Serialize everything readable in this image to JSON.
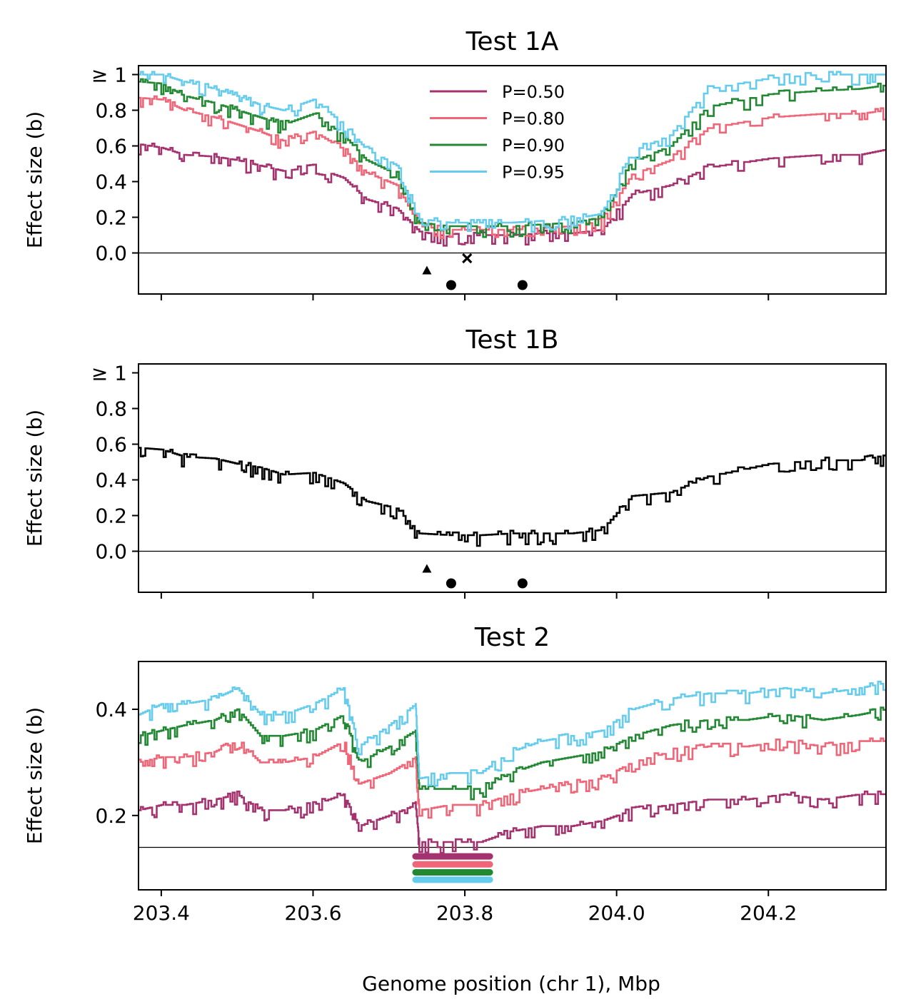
{
  "figure": {
    "xlabel": "Genome position (chr 1), Mbp",
    "x_ticks": [
      "203.4",
      "203.6",
      "203.8",
      "204.0",
      "204.2"
    ],
    "x_tick_values": [
      203.4,
      203.6,
      203.8,
      204.0,
      204.2
    ],
    "xlim": [
      203.37,
      204.355
    ]
  },
  "colors": {
    "P=0.50": "#a3326f",
    "P=0.80": "#ee6677",
    "P=0.90": "#228833",
    "P=0.95": "#66ccee",
    "single": "#000000"
  },
  "chart_data": [
    {
      "type": "line",
      "title": "Test 1A",
      "ylabel": "Effect size (b)",
      "ylim": [
        -0.23,
        1.05
      ],
      "y_ticks": [
        "0.0",
        "0.2",
        "0.4",
        "0.6",
        "0.8",
        "≥ 1"
      ],
      "y_tick_values": [
        0,
        0.2,
        0.4,
        0.6,
        0.8,
        1.0
      ],
      "hline": 0,
      "legend": {
        "placement": "top-center",
        "entries": [
          "P=0.50",
          "P=0.80",
          "P=0.90",
          "P=0.95"
        ]
      },
      "x": [
        203.37,
        203.4,
        203.43,
        203.47,
        203.5,
        203.53,
        203.56,
        203.6,
        203.64,
        203.67,
        203.71,
        203.74,
        203.78,
        203.82,
        203.86,
        203.9,
        203.94,
        203.98,
        204.02,
        204.07,
        204.12,
        204.2,
        204.27,
        204.32,
        204.355
      ],
      "series": [
        {
          "name": "P=0.50",
          "values": [
            0.61,
            0.59,
            0.55,
            0.54,
            0.52,
            0.49,
            0.46,
            0.48,
            0.42,
            0.3,
            0.25,
            0.12,
            0.09,
            0.1,
            0.1,
            0.11,
            0.11,
            0.13,
            0.33,
            0.38,
            0.48,
            0.53,
            0.55,
            0.55,
            0.58
          ]
        },
        {
          "name": "P=0.80",
          "values": [
            0.87,
            0.86,
            0.8,
            0.76,
            0.72,
            0.68,
            0.63,
            0.68,
            0.58,
            0.45,
            0.38,
            0.15,
            0.13,
            0.13,
            0.13,
            0.14,
            0.15,
            0.18,
            0.44,
            0.52,
            0.7,
            0.76,
            0.78,
            0.78,
            0.8
          ]
        },
        {
          "name": "P=0.90",
          "values": [
            0.96,
            0.95,
            0.88,
            0.84,
            0.8,
            0.76,
            0.72,
            0.78,
            0.66,
            0.52,
            0.44,
            0.17,
            0.15,
            0.15,
            0.15,
            0.16,
            0.17,
            0.2,
            0.51,
            0.6,
            0.82,
            0.89,
            0.91,
            0.92,
            0.94
          ]
        },
        {
          "name": "P=0.95",
          "values": [
            1.0,
            1.0,
            0.96,
            0.92,
            0.88,
            0.83,
            0.8,
            0.86,
            0.72,
            0.58,
            0.49,
            0.19,
            0.17,
            0.17,
            0.17,
            0.18,
            0.19,
            0.22,
            0.57,
            0.66,
            0.92,
            0.98,
            1.0,
            1.0,
            1.0
          ]
        }
      ],
      "markers": [
        {
          "shape": "triangle",
          "x": 203.75,
          "y": -0.1
        },
        {
          "shape": "cross",
          "x": 203.803,
          "y": -0.03
        },
        {
          "shape": "circle",
          "x": 203.782,
          "y": -0.18
        },
        {
          "shape": "circle",
          "x": 203.876,
          "y": -0.18
        }
      ]
    },
    {
      "type": "line",
      "title": "Test 1B",
      "ylabel": "Effect size (b)",
      "ylim": [
        -0.23,
        1.05
      ],
      "y_ticks": [
        "0.0",
        "0.2",
        "0.4",
        "0.6",
        "0.8",
        "≥ 1"
      ],
      "y_tick_values": [
        0,
        0.2,
        0.4,
        0.6,
        0.8,
        1.0
      ],
      "hline": 0,
      "x": [
        203.37,
        203.4,
        203.43,
        203.47,
        203.5,
        203.53,
        203.56,
        203.6,
        203.64,
        203.67,
        203.71,
        203.74,
        203.78,
        203.82,
        203.86,
        203.9,
        203.94,
        203.98,
        204.02,
        204.07,
        204.12,
        204.2,
        204.27,
        204.32,
        204.355
      ],
      "series": [
        {
          "values": [
            0.58,
            0.57,
            0.53,
            0.52,
            0.49,
            0.47,
            0.43,
            0.44,
            0.38,
            0.28,
            0.24,
            0.1,
            0.09,
            0.09,
            0.1,
            0.1,
            0.1,
            0.12,
            0.31,
            0.33,
            0.42,
            0.49,
            0.51,
            0.51,
            0.54
          ]
        }
      ],
      "markers": [
        {
          "shape": "triangle",
          "x": 203.75,
          "y": -0.1
        },
        {
          "shape": "circle",
          "x": 203.782,
          "y": -0.18
        },
        {
          "shape": "circle",
          "x": 203.876,
          "y": -0.18
        }
      ]
    },
    {
      "type": "line",
      "title": "Test 2",
      "ylabel": "Effect size (b)",
      "ylim": [
        0.06,
        0.49
      ],
      "y_ticks": [
        "0.2",
        "0.4"
      ],
      "y_tick_values": [
        0.2,
        0.4
      ],
      "hline": 0.14,
      "x": [
        203.37,
        203.4,
        203.43,
        203.47,
        203.5,
        203.53,
        203.56,
        203.6,
        203.64,
        203.66,
        203.7,
        203.735,
        203.74,
        203.78,
        203.82,
        203.86,
        203.9,
        203.94,
        203.98,
        204.02,
        204.07,
        204.12,
        204.17,
        204.22,
        204.27,
        204.32,
        204.355
      ],
      "series": [
        {
          "name": "P=0.50",
          "values": [
            0.21,
            0.22,
            0.22,
            0.23,
            0.24,
            0.21,
            0.21,
            0.22,
            0.24,
            0.18,
            0.2,
            0.22,
            0.15,
            0.15,
            0.15,
            0.17,
            0.18,
            0.18,
            0.19,
            0.21,
            0.22,
            0.23,
            0.23,
            0.24,
            0.23,
            0.24,
            0.24
          ]
        },
        {
          "name": "P=0.80",
          "values": [
            0.3,
            0.31,
            0.31,
            0.32,
            0.34,
            0.3,
            0.3,
            0.31,
            0.34,
            0.26,
            0.28,
            0.31,
            0.21,
            0.22,
            0.22,
            0.24,
            0.25,
            0.26,
            0.27,
            0.3,
            0.32,
            0.33,
            0.33,
            0.34,
            0.33,
            0.34,
            0.34
          ]
        },
        {
          "name": "P=0.90",
          "values": [
            0.35,
            0.36,
            0.37,
            0.38,
            0.4,
            0.35,
            0.35,
            0.36,
            0.39,
            0.3,
            0.33,
            0.36,
            0.25,
            0.25,
            0.25,
            0.28,
            0.3,
            0.31,
            0.32,
            0.35,
            0.37,
            0.38,
            0.38,
            0.39,
            0.38,
            0.39,
            0.4
          ]
        },
        {
          "name": "P=0.95",
          "values": [
            0.39,
            0.41,
            0.41,
            0.42,
            0.44,
            0.39,
            0.39,
            0.41,
            0.44,
            0.33,
            0.37,
            0.41,
            0.27,
            0.28,
            0.28,
            0.32,
            0.34,
            0.35,
            0.36,
            0.4,
            0.42,
            0.43,
            0.43,
            0.44,
            0.43,
            0.44,
            0.45
          ]
        }
      ],
      "bands": [
        {
          "series": "P=0.50",
          "x_start": 203.735,
          "x_end": 203.833,
          "y": 0.123
        },
        {
          "series": "P=0.80",
          "x_start": 203.735,
          "x_end": 203.833,
          "y": 0.108
        },
        {
          "series": "P=0.90",
          "x_start": 203.735,
          "x_end": 203.833,
          "y": 0.093
        },
        {
          "series": "P=0.95",
          "x_start": 203.735,
          "x_end": 203.833,
          "y": 0.079
        }
      ]
    }
  ]
}
